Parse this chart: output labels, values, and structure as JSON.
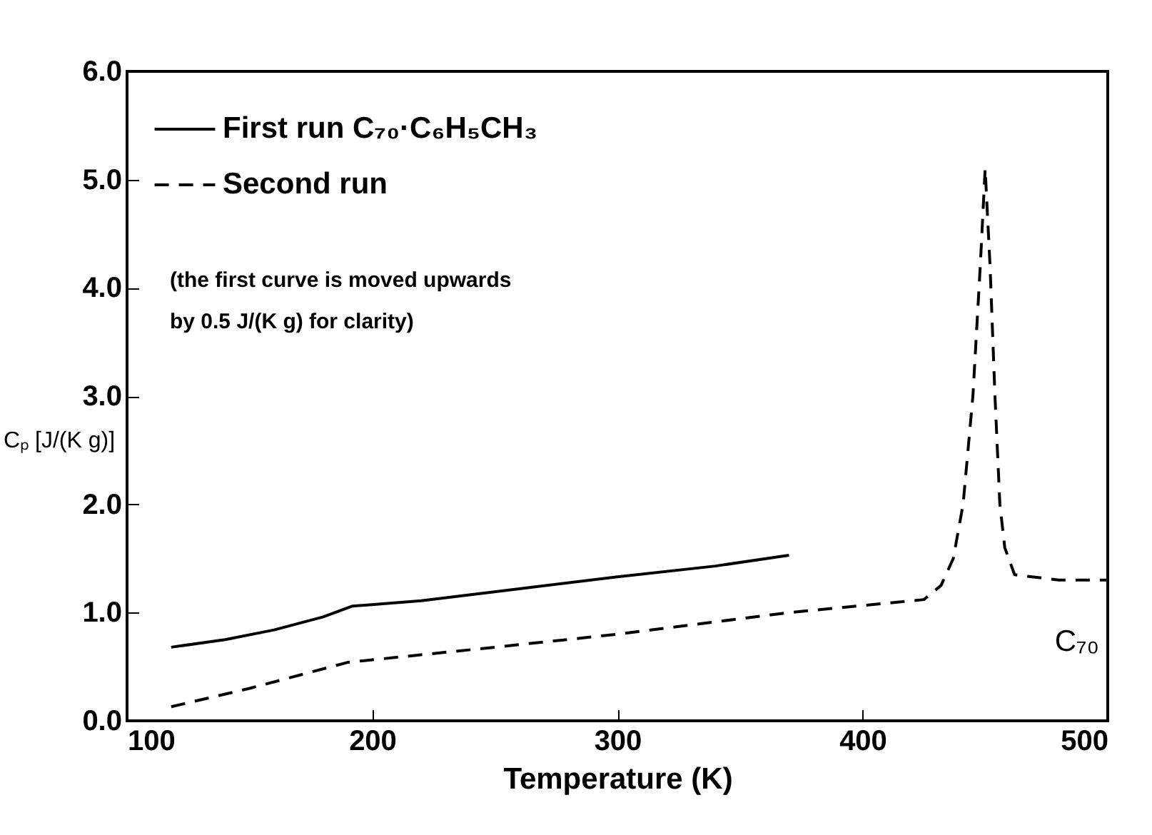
{
  "chart_data": {
    "type": "line",
    "xlabel": "Temperature (K)",
    "ylabel": "Cₚ [J/(K g)]",
    "xlim": [
      100,
      500
    ],
    "xticks": [
      100,
      200,
      300,
      400,
      500
    ],
    "ylim": [
      0,
      6
    ],
    "yticks": [
      {
        "value": 0,
        "label": "0.0"
      },
      {
        "value": 1,
        "label": "1.0"
      },
      {
        "value": 2,
        "label": "2.0"
      },
      {
        "value": 3,
        "label": "3.0"
      },
      {
        "value": 4,
        "label": "4.0"
      },
      {
        "value": 5,
        "label": "5.0"
      },
      {
        "value": 6,
        "label": "6.0"
      }
    ],
    "grid": false,
    "legend": "top left",
    "annotations": [
      "(the first curve is moved upwards",
      "by 0.5 J/(K g) for clarity)",
      "C₇₀"
    ],
    "series": [
      {
        "name": "First run C₇₀·C₆H₅CH₃",
        "color": "#000000",
        "line_style": "solid",
        "x": [
          118,
          140,
          160,
          180,
          192,
          220,
          260,
          300,
          340,
          370
        ],
        "values": [
          0.68,
          0.75,
          0.84,
          0.96,
          1.06,
          1.11,
          1.22,
          1.33,
          1.43,
          1.53
        ]
      },
      {
        "name": "Second run",
        "color": "#000000",
        "line_style": "dashed",
        "x": [
          118,
          150,
          190,
          250,
          300,
          370,
          425,
          432,
          437,
          441,
          445,
          448,
          450,
          452,
          454,
          456,
          458,
          462,
          480,
          500
        ],
        "values": [
          0.13,
          0.3,
          0.54,
          0.68,
          0.8,
          1.0,
          1.12,
          1.25,
          1.5,
          2.0,
          3.0,
          4.2,
          5.1,
          4.2,
          3.0,
          2.0,
          1.6,
          1.35,
          1.3,
          1.3
        ]
      }
    ]
  }
}
